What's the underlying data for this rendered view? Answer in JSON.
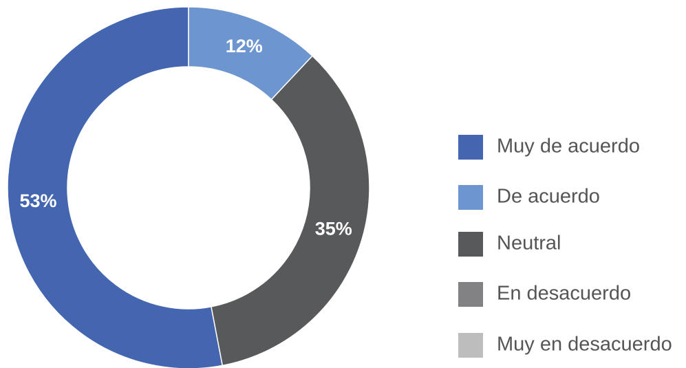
{
  "chart_data": {
    "type": "donut",
    "categories": [
      "Muy de acuerdo",
      "De acuerdo",
      "Neutral",
      "En desacuerdo",
      "Muy en desacuerdo"
    ],
    "values": [
      53,
      12,
      35,
      0,
      0
    ],
    "value_labels": [
      "53%",
      "12%",
      "35%",
      null,
      null
    ],
    "colors": [
      "#4466b0",
      "#6d95cf",
      "#58595b",
      "#828285",
      "#bdbdbd"
    ],
    "legend": "right"
  }
}
